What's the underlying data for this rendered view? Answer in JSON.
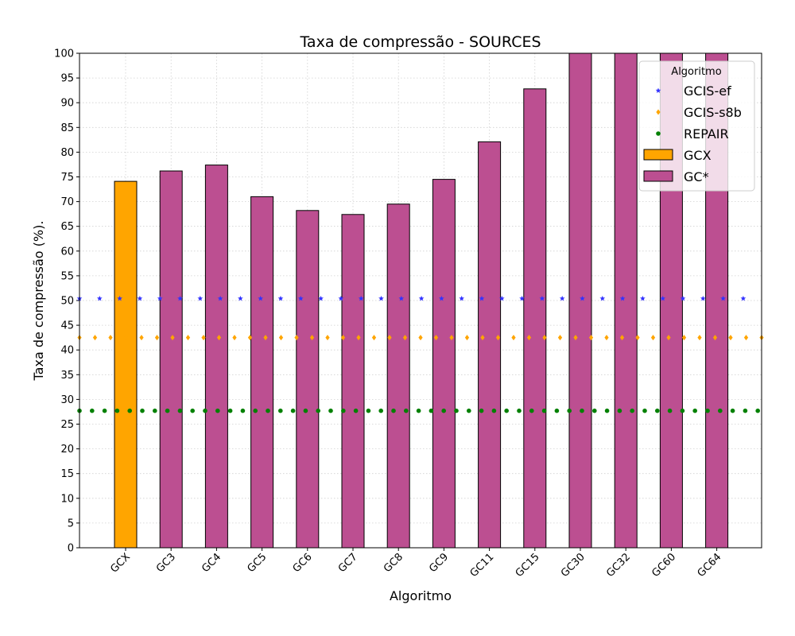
{
  "chart_data": {
    "type": "bar",
    "title": "Taxa de compressão -  SOURCES",
    "xlabel": "Algoritmo",
    "ylabel": "Taxa de compressão (%).",
    "ylim": [
      0,
      100
    ],
    "yticks": [
      0,
      5,
      10,
      15,
      20,
      25,
      30,
      35,
      40,
      45,
      50,
      55,
      60,
      65,
      70,
      75,
      80,
      85,
      90,
      95,
      100
    ],
    "categories": [
      "GCX",
      "GC3",
      "GC4",
      "GC5",
      "GC6",
      "GC7",
      "GC8",
      "GC9",
      "GC11",
      "GC15",
      "GC30",
      "GC32",
      "GC60",
      "GC64"
    ],
    "values": [
      74.1,
      76.2,
      77.4,
      71.0,
      68.2,
      67.4,
      69.5,
      74.5,
      82.1,
      92.8,
      101.0,
      101.0,
      100.0,
      100.0
    ],
    "bar_groups": [
      "GCX",
      "GC*",
      "GC*",
      "GC*",
      "GC*",
      "GC*",
      "GC*",
      "GC*",
      "GC*",
      "GC*",
      "GC*",
      "GC*",
      "GC*",
      "GC*"
    ],
    "grid": true,
    "legend": {
      "title": "Algoritmo",
      "placement": "top-right",
      "entries": [
        {
          "label": "GCIS-ef",
          "kind": "line",
          "value": 50.4,
          "color": "#3333ff",
          "marker": "star"
        },
        {
          "label": "GCIS-s8b",
          "kind": "line",
          "value": 42.5,
          "color": "#ffa500",
          "marker": "diamond"
        },
        {
          "label": "REPAIR",
          "kind": "line",
          "value": 27.7,
          "color": "#008000",
          "marker": "circle"
        },
        {
          "label": "GCX",
          "kind": "bar",
          "color": "#ffa500"
        },
        {
          "label": "GC*",
          "kind": "bar",
          "color": "#bc4f91"
        }
      ]
    }
  }
}
